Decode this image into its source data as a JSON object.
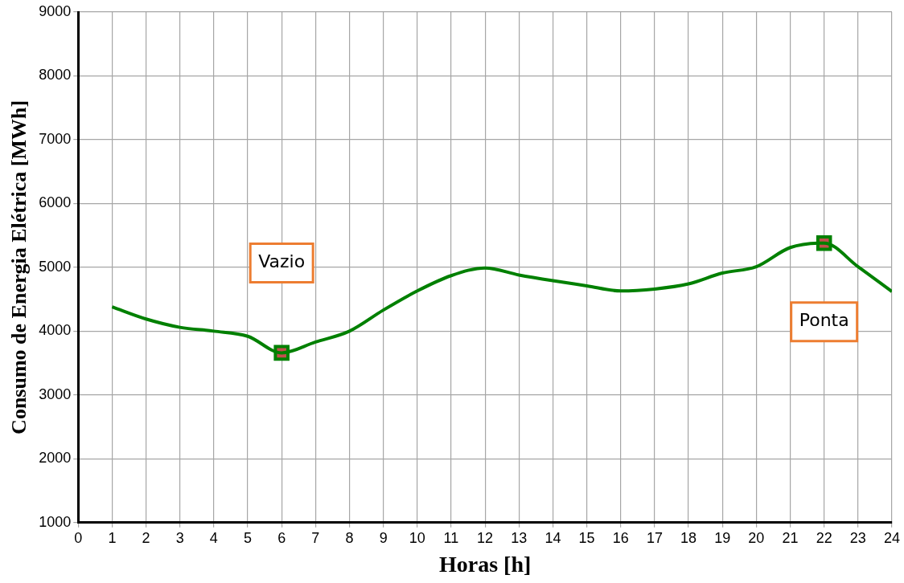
{
  "chart_data": {
    "type": "line",
    "xlabel": "Horas [h]",
    "ylabel": "Consumo de Energia Elétrica [MWh]",
    "xlim": [
      0,
      24
    ],
    "xticks": [
      0,
      1,
      2,
      3,
      4,
      5,
      6,
      7,
      8,
      9,
      10,
      11,
      12,
      13,
      14,
      15,
      16,
      17,
      18,
      19,
      20,
      21,
      22,
      23,
      24
    ],
    "ylim": [
      1000,
      9000
    ],
    "yticks": [
      1000,
      2000,
      3000,
      4000,
      5000,
      6000,
      7000,
      8000,
      9000
    ],
    "grid": true,
    "legend": false,
    "marker": "none",
    "line_style": "solid",
    "series": [
      {
        "type": "line",
        "color": "#008000",
        "x": [
          1,
          2,
          3,
          4,
          5,
          6,
          7,
          8,
          9,
          10,
          11,
          12,
          13,
          14,
          15,
          16,
          17,
          18,
          19,
          20,
          21,
          22,
          23,
          24
        ],
        "values": [
          4380,
          4190,
          4060,
          4000,
          3920,
          3660,
          3830,
          4000,
          4330,
          4630,
          4870,
          4990,
          4880,
          4790,
          4710,
          4630,
          4660,
          4740,
          4910,
          5010,
          5310,
          5380,
          5010,
          4620
        ]
      },
      {
        "type": "scatter",
        "marker": "square",
        "color": "#c0504d",
        "x": [
          6,
          22
        ],
        "values": [
          3660,
          5380
        ]
      }
    ],
    "annotations": [
      "Vazio",
      "Ponta"
    ]
  }
}
